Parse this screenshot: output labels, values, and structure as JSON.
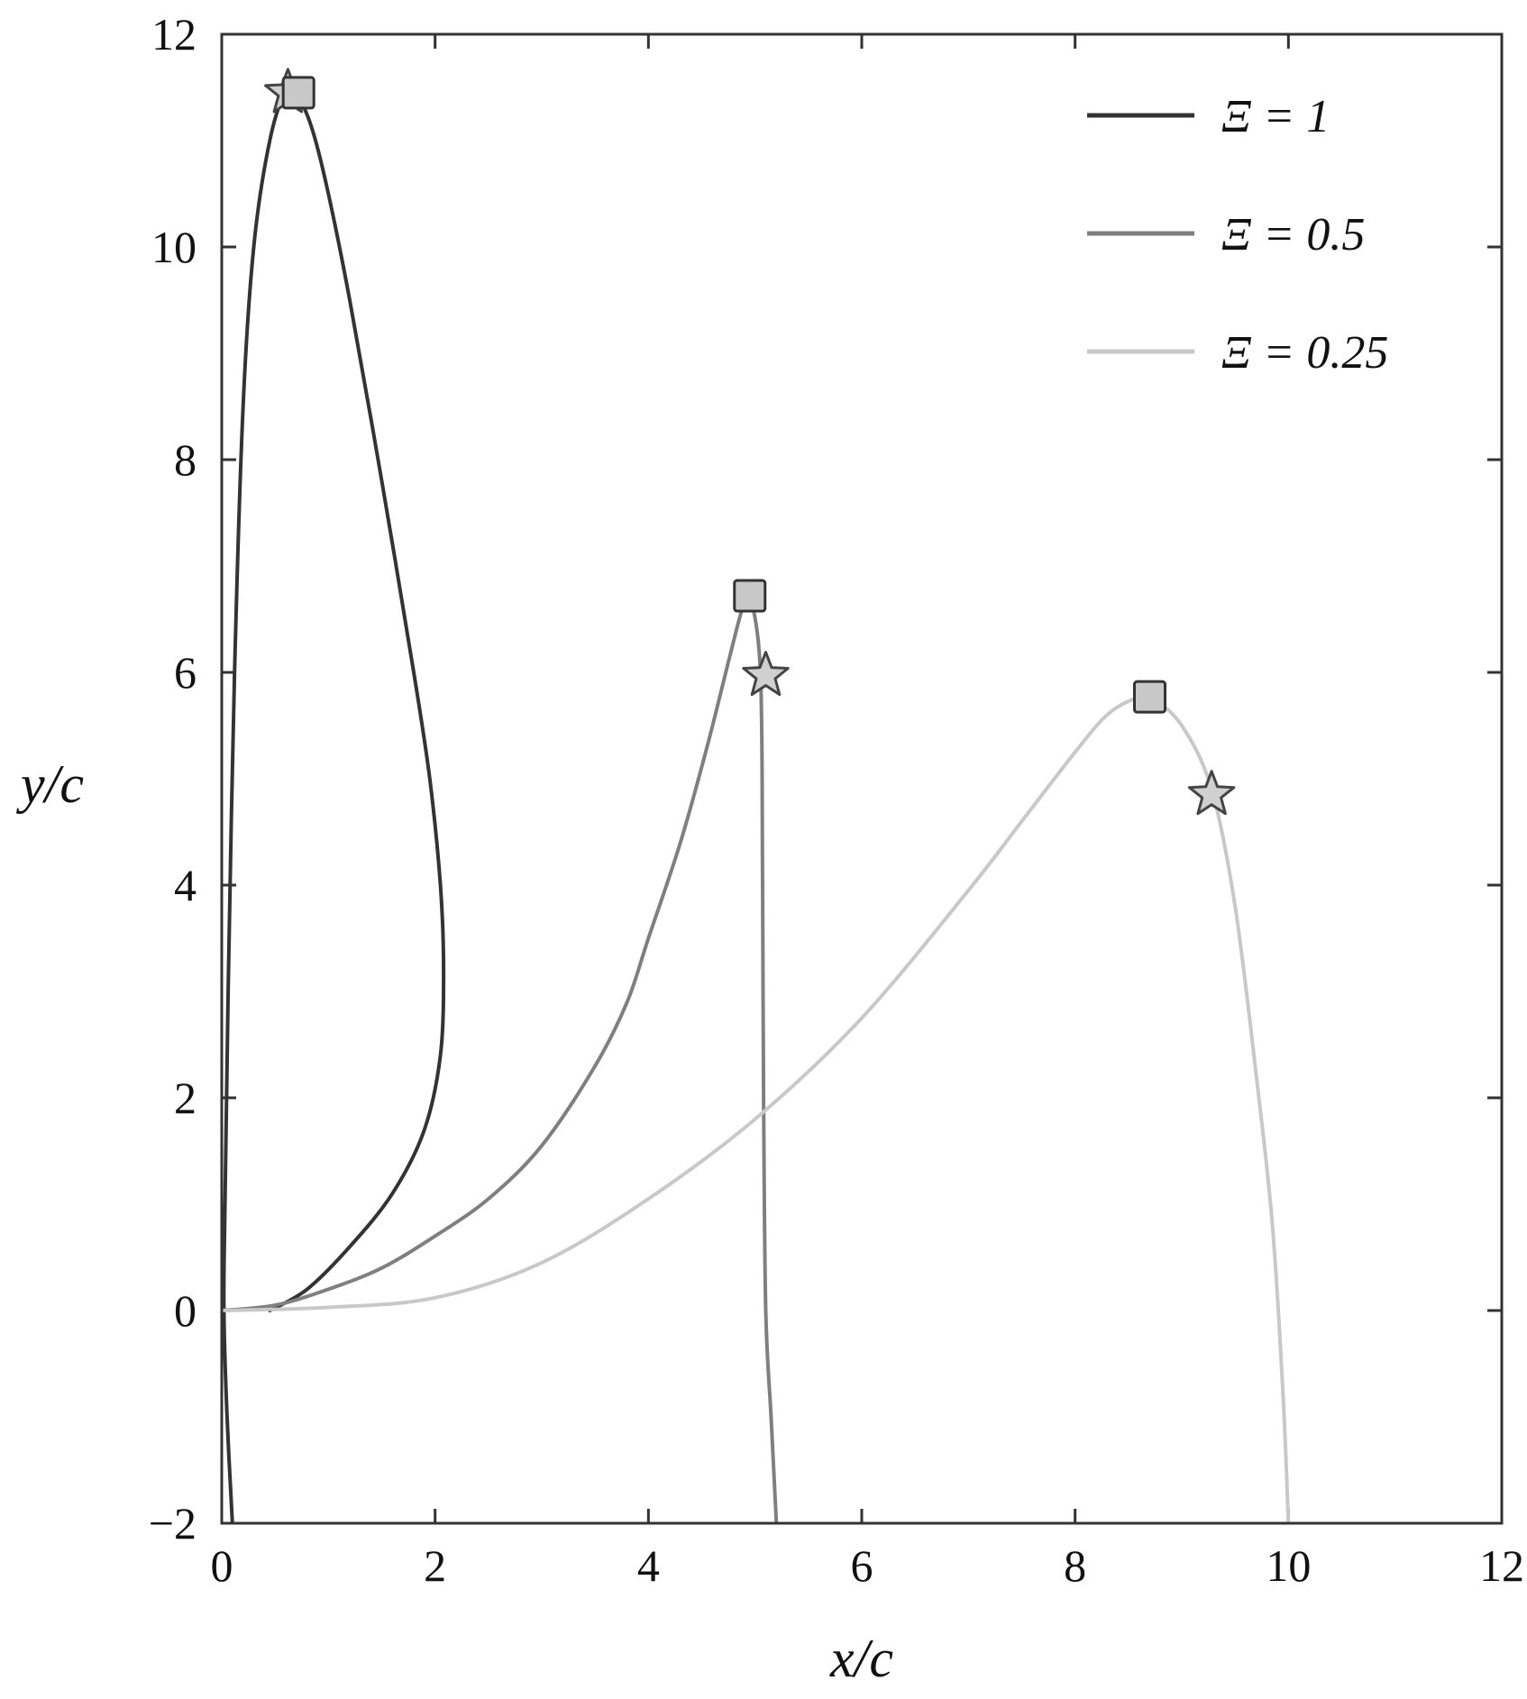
{
  "chart_data": {
    "type": "line",
    "title": "",
    "xlabel": "x/c",
    "ylabel": "y/c",
    "xlim": [
      0,
      12
    ],
    "ylim": [
      -2,
      12
    ],
    "xticks": [
      0,
      2,
      4,
      6,
      8,
      10,
      12
    ],
    "yticks": [
      -2,
      0,
      2,
      4,
      6,
      8,
      10,
      12
    ],
    "xtick_labels": [
      "0",
      "2",
      "4",
      "6",
      "8",
      "10",
      "12"
    ],
    "ytick_labels": [
      "−2",
      "0",
      "2",
      "4",
      "6",
      "8",
      "10",
      "12"
    ],
    "grid": false,
    "legend_position": "top-right",
    "series": [
      {
        "name": "Ξ = 1",
        "color": "#333333",
        "x": [
          0.45,
          0.8,
          1.2,
          1.6,
          1.9,
          2.05,
          2.08,
          2.05,
          1.95,
          1.8,
          1.5,
          1.2,
          1.0,
          0.85,
          0.72,
          0.6,
          0.45,
          0.3,
          0.2,
          0.12,
          0.06,
          0.03,
          0.02,
          0.05,
          0.1
        ],
        "y": [
          0.0,
          0.2,
          0.6,
          1.1,
          1.7,
          2.4,
          3.2,
          4.0,
          5.0,
          6.0,
          7.8,
          9.5,
          10.5,
          11.1,
          11.4,
          11.45,
          11.0,
          10.0,
          8.5,
          6.0,
          3.0,
          1.0,
          0.0,
          -1.0,
          -2.0
        ],
        "square": {
          "x": 0.72,
          "y": 11.45
        },
        "star": {
          "x": 0.62,
          "y": 11.45
        }
      },
      {
        "name": "Ξ = 0.5",
        "color": "#7f7f7f",
        "x": [
          0.0,
          0.5,
          1.0,
          1.5,
          2.0,
          2.5,
          3.0,
          3.5,
          3.8,
          4.0,
          4.3,
          4.55,
          4.75,
          4.88,
          4.95,
          5.05,
          5.07,
          5.08,
          5.1,
          5.15,
          5.2
        ],
        "y": [
          0.0,
          0.05,
          0.2,
          0.4,
          0.7,
          1.05,
          1.55,
          2.3,
          2.9,
          3.5,
          4.4,
          5.3,
          6.1,
          6.6,
          6.72,
          6.0,
          4.0,
          2.0,
          0.0,
          -1.0,
          -2.0
        ],
        "square": {
          "x": 4.95,
          "y": 6.72
        },
        "star": {
          "x": 5.1,
          "y": 5.97
        }
      },
      {
        "name": "Ξ = 0.25",
        "color": "#c8c8c8",
        "x": [
          0.0,
          1.0,
          2.0,
          3.0,
          4.0,
          5.0,
          6.0,
          7.0,
          7.5,
          8.0,
          8.3,
          8.55,
          8.7,
          9.0,
          9.28,
          9.5,
          9.7,
          9.85,
          9.95,
          10.0
        ],
        "y": [
          0.0,
          0.03,
          0.12,
          0.45,
          1.05,
          1.8,
          2.75,
          3.95,
          4.6,
          5.25,
          5.6,
          5.75,
          5.77,
          5.5,
          4.9,
          3.8,
          2.2,
          0.8,
          -0.8,
          -2.0
        ],
        "square": {
          "x": 8.7,
          "y": 5.77
        },
        "star": {
          "x": 9.28,
          "y": 4.85
        }
      }
    ]
  }
}
